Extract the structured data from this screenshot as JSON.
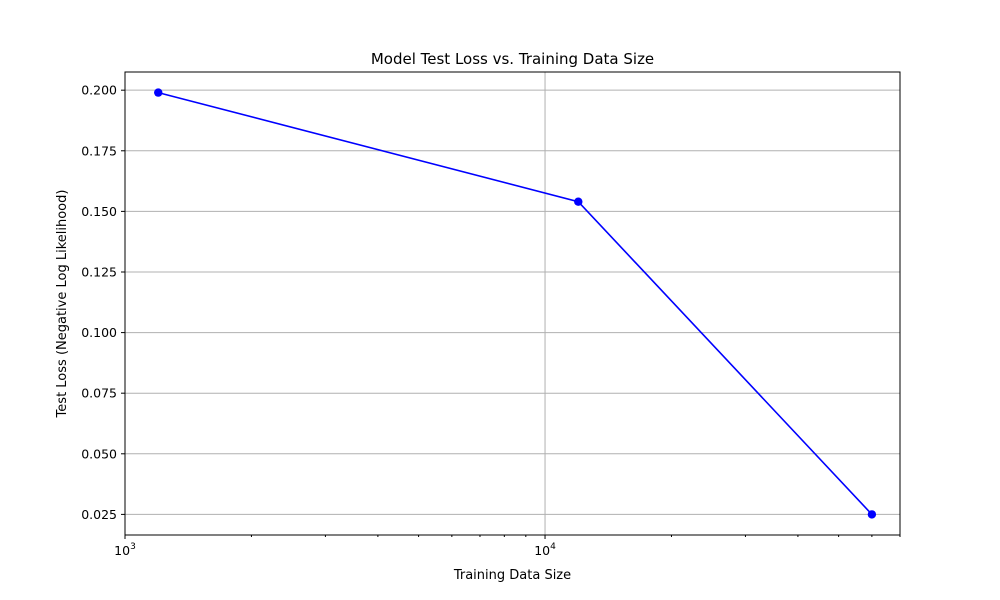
{
  "chart_data": {
    "type": "line",
    "title": "Model Test Loss vs. Training Data Size",
    "xlabel": "Training Data Size",
    "ylabel": "Test Loss (Negative Log Likelihood)",
    "x_scale": "log",
    "xlim": [
      1000,
      70000
    ],
    "ylim": [
      0.0165,
      0.2075
    ],
    "grid": true,
    "x_ticks": [
      {
        "value": 1000,
        "base": "10",
        "exp": "3"
      },
      {
        "value": 10000,
        "base": "10",
        "exp": "4"
      }
    ],
    "y_ticks": [
      {
        "value": 0.025,
        "label": "0.025"
      },
      {
        "value": 0.05,
        "label": "0.050"
      },
      {
        "value": 0.075,
        "label": "0.075"
      },
      {
        "value": 0.1,
        "label": "0.100"
      },
      {
        "value": 0.125,
        "label": "0.125"
      },
      {
        "value": 0.15,
        "label": "0.150"
      },
      {
        "value": 0.175,
        "label": "0.175"
      },
      {
        "value": 0.2,
        "label": "0.200"
      }
    ],
    "series": [
      {
        "x": [
          1200,
          12000,
          60000
        ],
        "y": [
          0.199,
          0.154,
          0.025
        ],
        "color": "#0000ff",
        "marker": "circle"
      }
    ]
  }
}
